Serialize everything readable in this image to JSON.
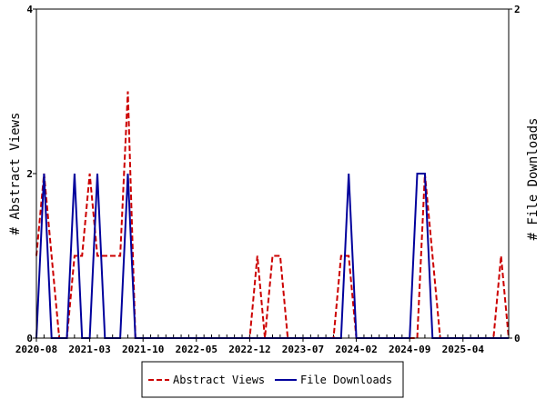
{
  "chart_data": {
    "type": "line",
    "title": "",
    "ylabel_left": "# Abstract Views",
    "ylabel_right": "# File Downloads",
    "xlim": [
      0,
      62
    ],
    "ylim_left": [
      0,
      4
    ],
    "ylim_right": [
      0,
      2
    ],
    "x_ticks": [
      {
        "x": 0,
        "label": "2020-08"
      },
      {
        "x": 7,
        "label": "2021-03"
      },
      {
        "x": 14,
        "label": "2021-10"
      },
      {
        "x": 21,
        "label": "2022-05"
      },
      {
        "x": 28,
        "label": "2022-12"
      },
      {
        "x": 35,
        "label": "2023-07"
      },
      {
        "x": 42,
        "label": "2024-02"
      },
      {
        "x": 49,
        "label": "2024-09"
      },
      {
        "x": 56,
        "label": "2025-04"
      }
    ],
    "y_ticks_left": [
      "0",
      "2",
      "4"
    ],
    "y_ticks_right": [
      "0",
      "2"
    ],
    "legend_position": "bottom",
    "series": [
      {
        "name": "Abstract Views",
        "axis": "left",
        "color": "#cc0000",
        "dash": "6,3",
        "values": [
          1,
          2,
          1,
          0,
          0,
          1,
          1,
          2,
          1,
          1,
          1,
          1,
          3,
          0,
          0,
          0,
          0,
          0,
          0,
          0,
          0,
          0,
          0,
          0,
          0,
          0,
          0,
          0,
          0,
          1,
          0,
          1,
          1,
          0,
          0,
          0,
          0,
          0,
          0,
          0,
          1,
          1,
          0,
          0,
          0,
          0,
          0,
          0,
          0,
          0,
          0,
          2,
          1,
          0,
          0,
          0,
          0,
          0,
          0,
          0,
          0,
          1,
          0
        ]
      },
      {
        "name": "File Downloads",
        "axis": "right",
        "color": "#00009c",
        "dash": "",
        "values": [
          0,
          1,
          0,
          0,
          0,
          1,
          0,
          0,
          1,
          0,
          0,
          0,
          1,
          0,
          0,
          0,
          0,
          0,
          0,
          0,
          0,
          0,
          0,
          0,
          0,
          0,
          0,
          0,
          0,
          0,
          0,
          0,
          0,
          0,
          0,
          0,
          0,
          0,
          0,
          0,
          0,
          1,
          0,
          0,
          0,
          0,
          0,
          0,
          0,
          0,
          1,
          1,
          0,
          0,
          0,
          0,
          0,
          0,
          0,
          0,
          0,
          0,
          0
        ]
      }
    ]
  }
}
